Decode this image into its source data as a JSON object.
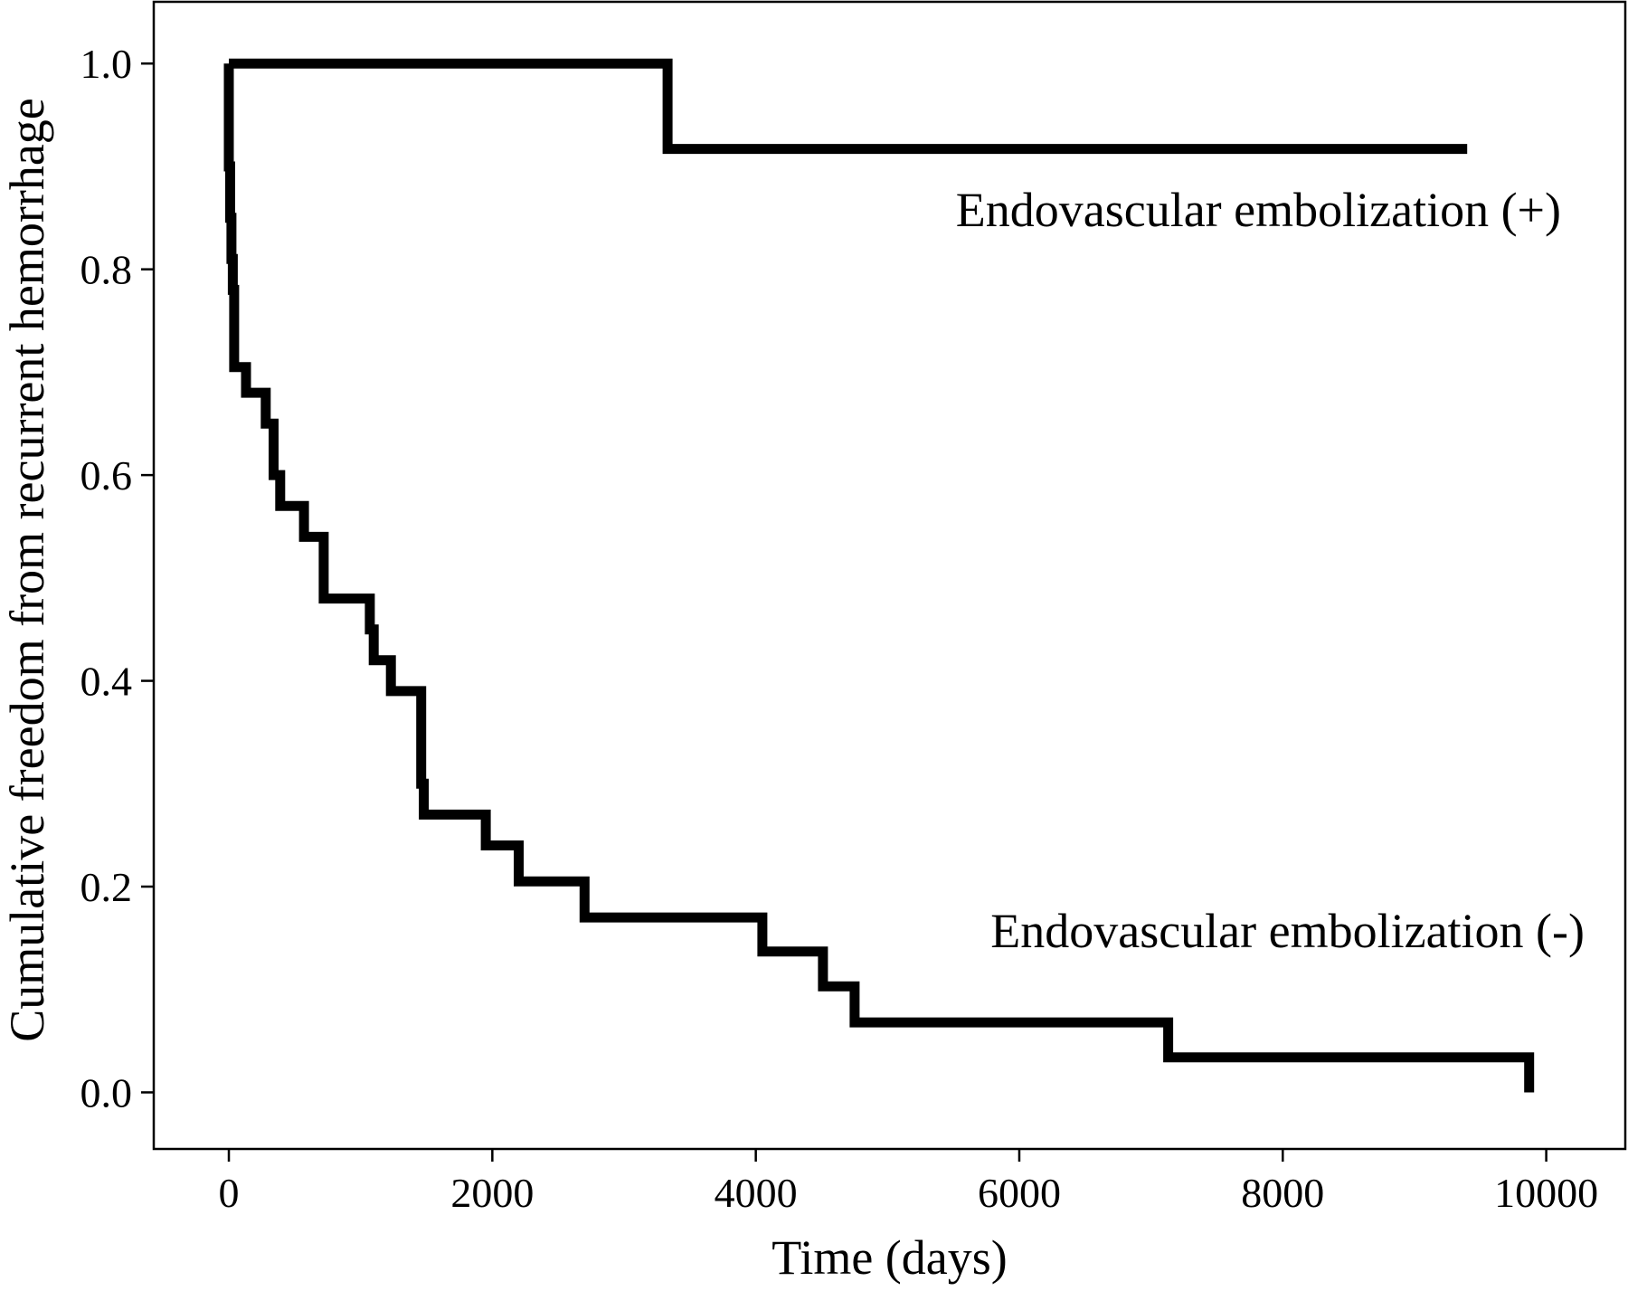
{
  "chart_data": {
    "type": "line",
    "title": "",
    "xlabel": "Time (days)",
    "ylabel": "Cumulative freedom from recurrent hemorrhage",
    "xlim": [
      -570,
      10600
    ],
    "ylim": [
      -0.055,
      1.06
    ],
    "xticks": [
      0,
      2000,
      4000,
      6000,
      8000,
      10000
    ],
    "xtick_labels": [
      "0",
      "2000",
      "4000",
      "6000",
      "8000",
      "10000"
    ],
    "yticks": [
      0.0,
      0.2,
      0.4,
      0.6,
      0.8,
      1.0
    ],
    "ytick_labels": [
      "0.0",
      "0.2",
      "0.4",
      "0.6",
      "0.8",
      "1.0"
    ],
    "grid": false,
    "legend": "none",
    "line_color": "#000000",
    "series": [
      {
        "name": "Endovascular embolization (+)",
        "label_position": "upper-right",
        "x": [
          0,
          3330,
          3330,
          9400
        ],
        "y": [
          1.0,
          1.0,
          0.917,
          0.917
        ]
      },
      {
        "name": "Endovascular embolization (-)",
        "label_position": "lower-right",
        "x": [
          0,
          0,
          10,
          10,
          20,
          20,
          30,
          30,
          40,
          40,
          130,
          130,
          280,
          280,
          340,
          340,
          390,
          390,
          570,
          570,
          720,
          720,
          1070,
          1070,
          1100,
          1100,
          1230,
          1230,
          1460,
          1460,
          1480,
          1480,
          1950,
          1950,
          2200,
          2200,
          2700,
          2700,
          4050,
          4050,
          4510,
          4510,
          4750,
          4750,
          7130,
          7130,
          9870,
          9870
        ],
        "y": [
          1.0,
          0.9,
          0.9,
          0.85,
          0.85,
          0.81,
          0.81,
          0.78,
          0.78,
          0.705,
          0.705,
          0.68,
          0.68,
          0.65,
          0.65,
          0.6,
          0.6,
          0.57,
          0.57,
          0.54,
          0.54,
          0.48,
          0.48,
          0.45,
          0.45,
          0.42,
          0.42,
          0.39,
          0.39,
          0.3,
          0.3,
          0.27,
          0.27,
          0.24,
          0.24,
          0.205,
          0.205,
          0.17,
          0.17,
          0.137,
          0.137,
          0.103,
          0.103,
          0.068,
          0.068,
          0.034,
          0.034,
          0.0
        ]
      }
    ]
  }
}
